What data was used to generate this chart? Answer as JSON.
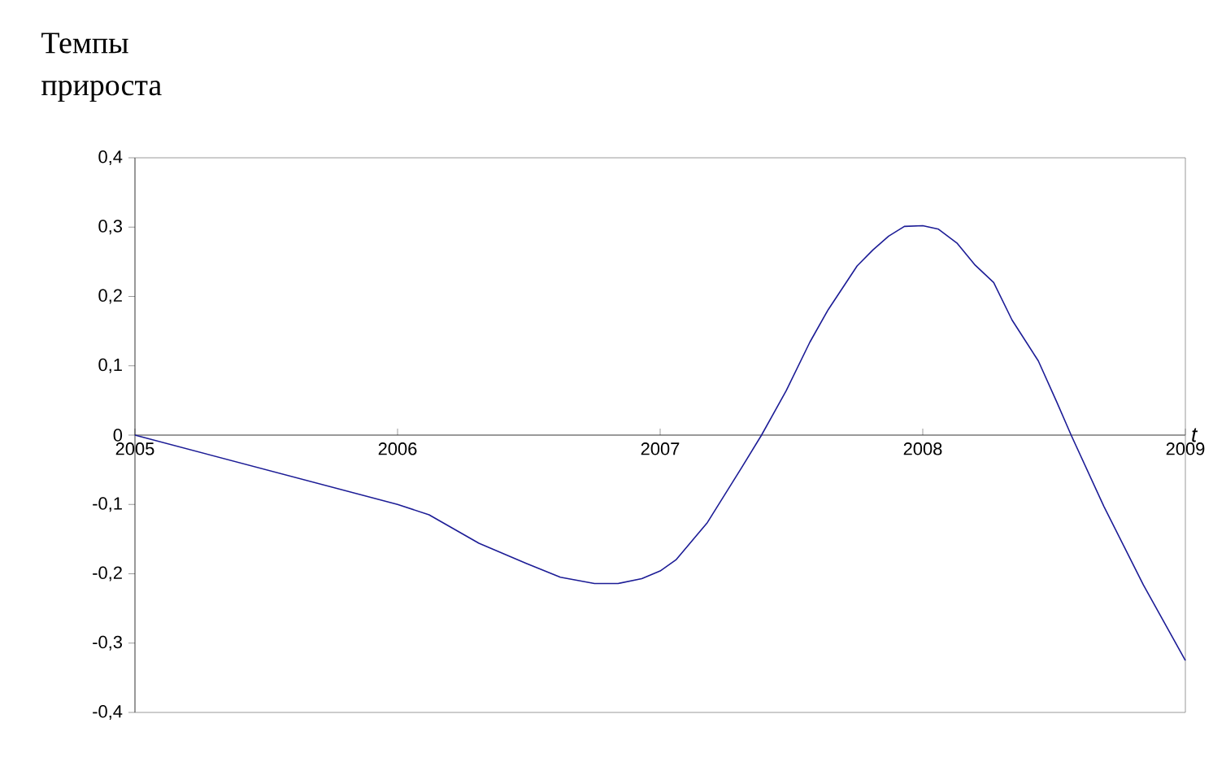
{
  "chart_data": {
    "type": "line",
    "ylabel": "Темпы прироста",
    "xlabel": "t",
    "x": [
      2005,
      2006,
      2006.12,
      2006.31,
      2006.49,
      2006.62,
      2006.75,
      2006.84,
      2006.93,
      2007.0,
      2007.06,
      2007.18,
      2007.31,
      2007.386,
      2007.48,
      2007.57,
      2007.64,
      2007.75,
      2007.81,
      2007.87,
      2007.93,
      2008.0,
      2008.06,
      2008.13,
      2008.2,
      2008.27,
      2008.34,
      2008.44,
      2008.51,
      2008.565,
      2008.69,
      2008.84,
      2009
    ],
    "series": [
      {
        "color": "#1c1c96",
        "values": [
          0,
          -0.1,
          -0.115,
          -0.156,
          -0.185,
          -0.205,
          -0.214,
          -0.214,
          -0.207,
          -0.196,
          -0.18,
          -0.126,
          -0.047,
          0,
          0.064,
          0.134,
          0.181,
          0.244,
          0.267,
          0.287,
          0.301,
          0.302,
          0.297,
          0.277,
          0.245,
          0.22,
          0.166,
          0.107,
          0.048,
          0,
          -0.103,
          -0.216,
          -0.325
        ]
      }
    ],
    "xlim": [
      2005,
      2009
    ],
    "xticks": [
      2005,
      2006,
      2007,
      2008,
      2009
    ],
    "ylim": [
      -0.4,
      0.4
    ],
    "yticks": [
      {
        "value": -0.4,
        "label": "-0,4"
      },
      {
        "value": -0.3,
        "label": "-0,3"
      },
      {
        "value": -0.2,
        "label": "-0,2"
      },
      {
        "value": -0.1,
        "label": "-0,1"
      },
      0,
      {
        "value": 0.1,
        "label": "0,1"
      },
      {
        "value": 0.2,
        "label": "0,2"
      },
      {
        "value": 0.3,
        "label": "0,3"
      },
      {
        "value": 0.4,
        "label": "0,4"
      }
    ],
    "grid": false,
    "marker": "none",
    "line_style": "solid"
  }
}
